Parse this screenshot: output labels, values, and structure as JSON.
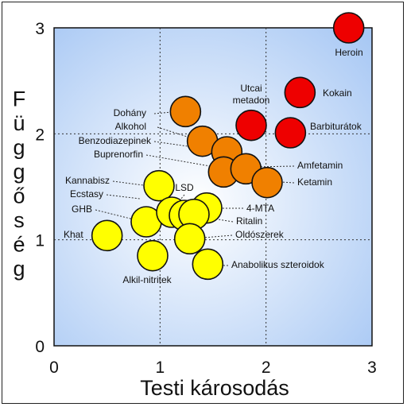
{
  "chart_data": {
    "type": "scatter",
    "title": "",
    "xlabel": "Testi károsodás",
    "ylabel": "Függőség",
    "xlim": [
      0,
      3
    ],
    "ylim": [
      0,
      3
    ],
    "xticks": [
      "0",
      "1",
      "2",
      "3"
    ],
    "yticks": [
      "0",
      "1",
      "2",
      "3"
    ],
    "grid": true,
    "colors": {
      "red": "#ee0000",
      "orange": "#f08000",
      "yellow": "#ffff00",
      "bg_center": "#ffffff",
      "bg_edge": "#a8c8f4"
    },
    "points": [
      {
        "label": "Heroin",
        "x": 2.78,
        "y": 3.0,
        "color": "red"
      },
      {
        "label": "Kokain",
        "x": 2.32,
        "y": 2.39,
        "color": "red"
      },
      {
        "label": "Utcai metadon",
        "x": 1.86,
        "y": 2.08,
        "color": "red"
      },
      {
        "label": "Barbiturátok",
        "x": 2.23,
        "y": 2.01,
        "color": "red"
      },
      {
        "label": "Dohány",
        "x": 1.24,
        "y": 2.21,
        "color": "orange"
      },
      {
        "label": "Alkohol",
        "x": 1.4,
        "y": 1.93,
        "color": "orange"
      },
      {
        "label": "Benzodiazepinek",
        "x": 1.63,
        "y": 1.83,
        "color": "orange"
      },
      {
        "label": "Buprenorfin",
        "x": 1.6,
        "y": 1.64,
        "color": "orange"
      },
      {
        "label": "Amfetamin",
        "x": 1.81,
        "y": 1.67,
        "color": "orange"
      },
      {
        "label": "Ketamin",
        "x": 2.01,
        "y": 1.54,
        "color": "orange"
      },
      {
        "label": "Kannabisz",
        "x": 0.99,
        "y": 1.51,
        "color": "yellow"
      },
      {
        "label": "Ecstasy",
        "x": 0.87,
        "y": 1.17,
        "color": "yellow"
      },
      {
        "label": "GHB",
        "x": 1.11,
        "y": 1.26,
        "color": "yellow"
      },
      {
        "label": "LSD",
        "x": 1.23,
        "y": 1.23,
        "color": "yellow"
      },
      {
        "label": "4-MTA",
        "x": 1.44,
        "y": 1.3,
        "color": "yellow"
      },
      {
        "label": "Ritalin",
        "x": 1.32,
        "y": 1.24,
        "color": "yellow"
      },
      {
        "label": "Oldószerek",
        "x": 1.28,
        "y": 1.01,
        "color": "yellow"
      },
      {
        "label": "Khat",
        "x": 0.5,
        "y": 1.04,
        "color": "yellow"
      },
      {
        "label": "Alkil-nitritek",
        "x": 0.93,
        "y": 0.85,
        "color": "yellow"
      },
      {
        "label": "Anabolikus szteroidok",
        "x": 1.45,
        "y": 0.77,
        "color": "yellow"
      }
    ]
  }
}
